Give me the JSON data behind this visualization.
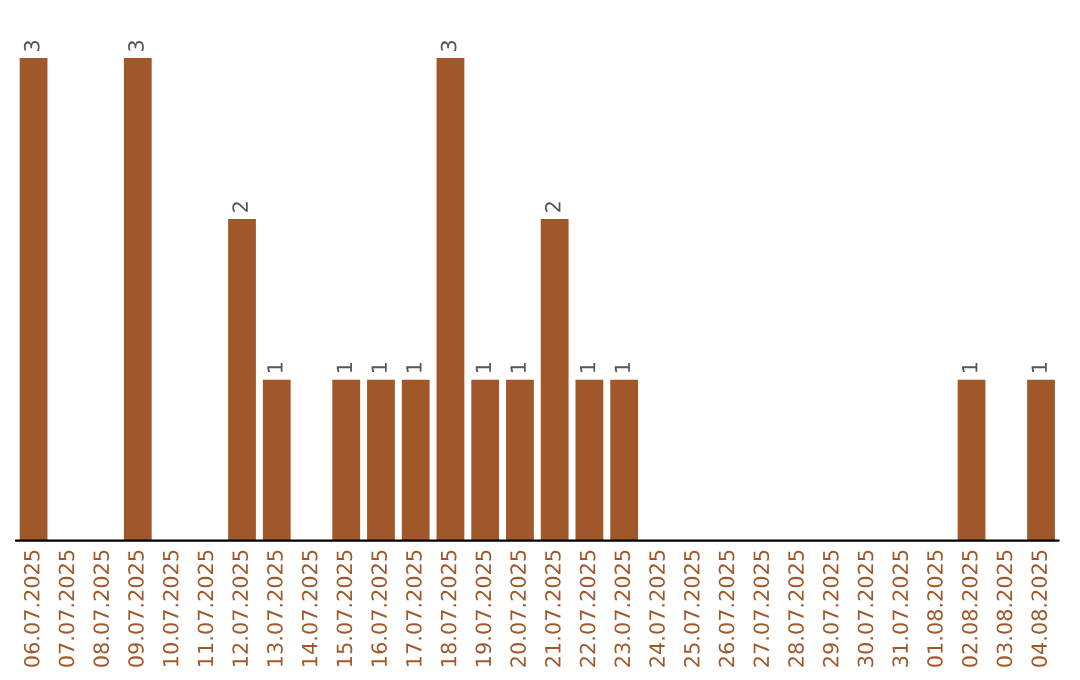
{
  "chart_data": {
    "type": "bar",
    "categories": [
      "06.07.2025",
      "07.07.2025",
      "08.07.2025",
      "09.07.2025",
      "10.07.2025",
      "11.07.2025",
      "12.07.2025",
      "13.07.2025",
      "14.07.2025",
      "15.07.2025",
      "16.07.2025",
      "17.07.2025",
      "18.07.2025",
      "19.07.2025",
      "20.07.2025",
      "21.07.2025",
      "22.07.2025",
      "23.07.2025",
      "24.07.2025",
      "25.07.2025",
      "26.07.2025",
      "27.07.2025",
      "28.07.2025",
      "29.07.2025",
      "30.07.2025",
      "31.07.2025",
      "01.08.2025",
      "02.08.2025",
      "03.08.2025",
      "04.08.2025"
    ],
    "values": [
      3,
      0,
      0,
      3,
      0,
      0,
      2,
      1,
      0,
      1,
      1,
      1,
      3,
      1,
      1,
      2,
      1,
      1,
      0,
      0,
      0,
      0,
      0,
      0,
      0,
      0,
      0,
      1,
      0,
      1
    ],
    "value_labels": [
      "3",
      null,
      null,
      "3",
      null,
      null,
      "2",
      "1",
      null,
      "1",
      "1",
      "1",
      "3",
      "1",
      "1",
      "2",
      "1",
      "1",
      null,
      null,
      null,
      null,
      null,
      null,
      null,
      null,
      null,
      "1",
      null,
      "1"
    ],
    "color": "#a0582a",
    "tick_labels": "x",
    "grid": false,
    "legend": false
  }
}
